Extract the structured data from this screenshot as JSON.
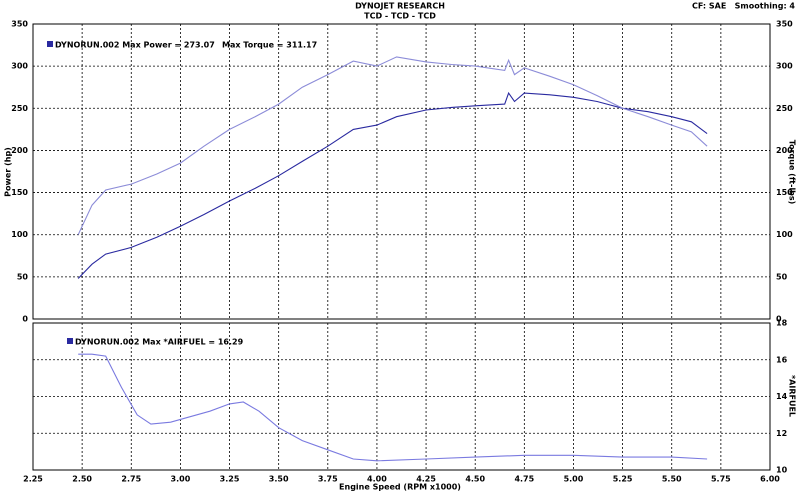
{
  "chart_data": [
    {
      "type": "line",
      "title": "DYNOJET RESEARCH",
      "subtitle": "TCD - TCD - TCD",
      "note": "CF: SAE   Smoothing: 4",
      "ylabel": "Power (hp)",
      "y2label": "Torque (ft-lbs)",
      "annotations": [
        "DYNORUN.002 Max Power = 273.07",
        "Max Torque = 311.17"
      ],
      "xlim": [
        2.25,
        6.0
      ],
      "xticks": [
        2.25,
        2.5,
        2.75,
        3.0,
        3.25,
        3.5,
        3.75,
        4.0,
        4.25,
        4.5,
        4.75,
        5.0,
        5.25,
        5.5,
        5.75,
        6.0
      ],
      "ylim": [
        0,
        350
      ],
      "yticks": [
        0,
        50,
        100,
        150,
        200,
        250,
        300,
        350
      ],
      "y2lim": [
        0,
        350
      ],
      "y2ticks": [
        0,
        50,
        100,
        150,
        200,
        250,
        300,
        350
      ],
      "grid": true,
      "series": [
        {
          "color": "#2a2aa0",
          "x": [
            2.48,
            2.55,
            2.62,
            2.75,
            2.88,
            3.0,
            3.12,
            3.25,
            3.38,
            3.5,
            3.62,
            3.75,
            3.88,
            4.0,
            4.1,
            4.25,
            4.38,
            4.5,
            4.65,
            4.67,
            4.7,
            4.75,
            4.88,
            5.0,
            5.12,
            5.25,
            5.38,
            5.5,
            5.6,
            5.68
          ],
          "values": [
            48,
            65,
            77,
            85,
            97,
            110,
            124,
            140,
            155,
            170,
            187,
            205,
            225,
            230,
            240,
            248,
            251,
            253,
            255,
            268,
            258,
            268,
            266,
            263,
            258,
            250,
            246,
            240,
            234,
            220
          ]
        },
        {
          "color": "#8c8cd8",
          "axis": "y2",
          "x": [
            2.48,
            2.55,
            2.62,
            2.75,
            2.88,
            3.0,
            3.12,
            3.25,
            3.38,
            3.5,
            3.62,
            3.75,
            3.88,
            4.0,
            4.1,
            4.25,
            4.38,
            4.5,
            4.65,
            4.67,
            4.7,
            4.75,
            4.88,
            5.0,
            5.12,
            5.25,
            5.38,
            5.5,
            5.6,
            5.68
          ],
          "values": [
            100,
            135,
            153,
            160,
            172,
            185,
            205,
            225,
            240,
            255,
            275,
            290,
            306,
            300,
            311,
            305,
            302,
            300,
            295,
            307,
            290,
            298,
            288,
            278,
            265,
            250,
            240,
            230,
            222,
            205
          ]
        }
      ]
    },
    {
      "type": "line",
      "xlabel": "Engine Speed (RPM x1000)",
      "ylabel": "*AIRFUEL",
      "annotations": [
        "DYNORUN.002 Max *AIRFUEL = 16.29"
      ],
      "xlim": [
        2.25,
        6.0
      ],
      "xticks": [
        {
          "value": 2.25,
          "label": "2.25"
        },
        {
          "value": 2.5,
          "label": "2.50"
        },
        {
          "value": 2.75,
          "label": "2.75"
        },
        {
          "value": 3.0,
          "label": "3.00"
        },
        {
          "value": 3.25,
          "label": "3.25"
        },
        {
          "value": 3.5,
          "label": "3.50"
        },
        {
          "value": 3.75,
          "label": "3.75"
        },
        {
          "value": 4.0,
          "label": "4.00"
        },
        {
          "value": 4.25,
          "label": "4.25"
        },
        {
          "value": 4.5,
          "label": "4.50"
        },
        {
          "value": 4.75,
          "label": "4.75"
        },
        {
          "value": 5.0,
          "label": "5.00"
        },
        {
          "value": 5.25,
          "label": "5.25"
        },
        {
          "value": 5.5,
          "label": "5.50"
        },
        {
          "value": 5.75,
          "label": "5.75"
        },
        {
          "value": 6.0,
          "label": "6.00"
        }
      ],
      "ylim": [
        10,
        18
      ],
      "yticks": [
        10,
        12,
        14,
        16,
        18
      ],
      "grid": true,
      "series": [
        {
          "color": "#7a7ae0",
          "x": [
            2.48,
            2.55,
            2.62,
            2.7,
            2.78,
            2.85,
            2.95,
            3.05,
            3.15,
            3.25,
            3.32,
            3.4,
            3.5,
            3.62,
            3.75,
            3.88,
            4.0,
            4.25,
            4.5,
            4.75,
            5.0,
            5.25,
            5.5,
            5.68
          ],
          "values": [
            16.3,
            16.3,
            16.2,
            14.5,
            13.0,
            12.5,
            12.6,
            12.9,
            13.2,
            13.6,
            13.7,
            13.2,
            12.3,
            11.6,
            11.1,
            10.6,
            10.5,
            10.6,
            10.7,
            10.8,
            10.8,
            10.7,
            10.7,
            10.6
          ]
        }
      ]
    }
  ]
}
